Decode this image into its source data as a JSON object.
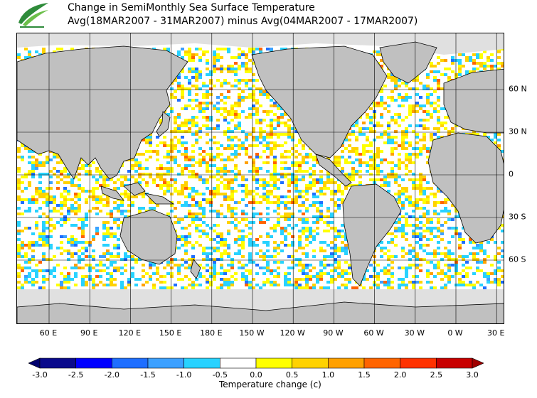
{
  "header": {
    "title_line1": "Change in SemiMonthly Sea Surface Temperature",
    "title_line2": "Avg(18MAR2007 - 31MAR2007) minus Avg(04MAR2007 - 17MAR2007)"
  },
  "logo": {
    "icon": "leaf-logo-icon",
    "color": "#2e8b3a"
  },
  "map": {
    "x_labels": [
      "60 E",
      "90 E",
      "120 E",
      "150 E",
      "180 E",
      "150 W",
      "120 W",
      "90 W",
      "60 W",
      "30 W",
      "0 W",
      "30 E"
    ],
    "y_labels": [
      "60 N",
      "30 N",
      "0",
      "30 S",
      "60 S"
    ],
    "land_color": "#c0c0c0",
    "ice_color": "#e0e0e0"
  },
  "colorbar": {
    "label": "Temperature change  (c)",
    "ticks": [
      "-3.0",
      "-2.5",
      "-2.0",
      "-1.5",
      "-1.0",
      "-0.5",
      "0.0",
      "0.5",
      "1.0",
      "1.5",
      "2.0",
      "2.5",
      "3.0"
    ],
    "colors": [
      "#0a0a8c",
      "#0000ff",
      "#1e6eff",
      "#3ca0ff",
      "#28d2ff",
      "#ffffff",
      "#ffff00",
      "#ffd200",
      "#ffa000",
      "#ff6400",
      "#ff3200",
      "#c80000"
    ],
    "low_arrow_color": "#00006e",
    "high_arrow_color": "#a00000"
  }
}
